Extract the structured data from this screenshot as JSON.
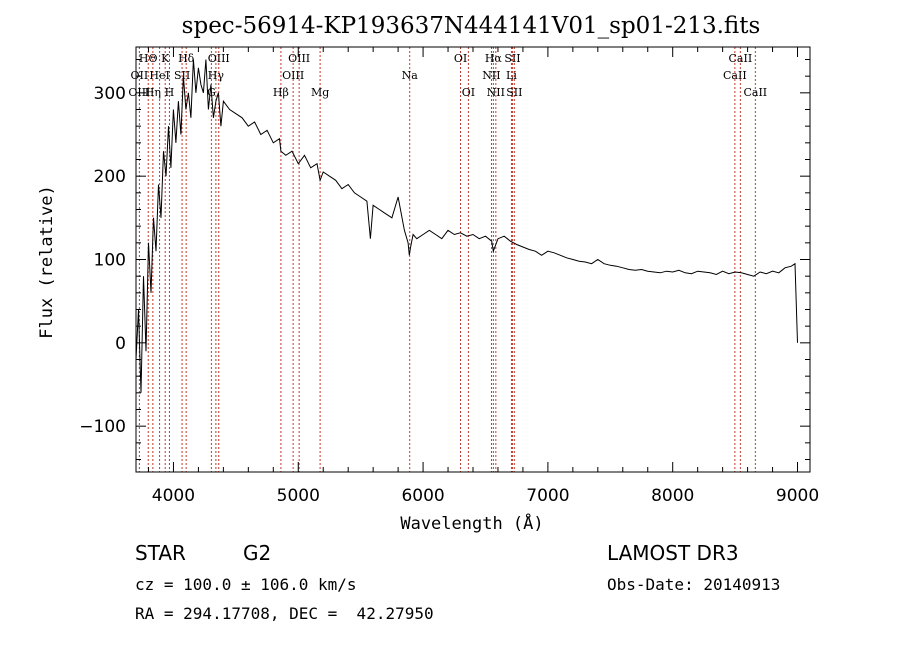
{
  "chart_data": {
    "type": "line",
    "title": "spec-56914-KP193637N444141V01_sp01-213.fits",
    "xlabel": "Wavelength (Å)",
    "ylabel": "Flux (relative)",
    "xlim": [
      3700,
      9100
    ],
    "ylim": [
      -155,
      355
    ],
    "xticks": [
      4000,
      5000,
      6000,
      7000,
      8000,
      9000
    ],
    "yticks": [
      -100,
      0,
      100,
      200,
      300
    ],
    "grid": false,
    "line_color": "#000000",
    "marker_color": "#c0392b",
    "series": [
      {
        "x": [
          3700,
          3720,
          3740,
          3760,
          3780,
          3800,
          3820,
          3840,
          3860,
          3880,
          3900,
          3920,
          3940,
          3960,
          3980,
          4000,
          4020,
          4040,
          4060,
          4080,
          4100,
          4120,
          4140,
          4160,
          4180,
          4200,
          4220,
          4240,
          4260,
          4280,
          4300,
          4320,
          4340,
          4360,
          4380,
          4400,
          4450,
          4500,
          4550,
          4600,
          4650,
          4700,
          4750,
          4800,
          4850,
          4861,
          4900,
          4950,
          5000,
          5050,
          5100,
          5150,
          5175,
          5200,
          5250,
          5300,
          5350,
          5400,
          5450,
          5500,
          5550,
          5578,
          5600,
          5650,
          5700,
          5750,
          5800,
          5850,
          5880,
          5890,
          5900,
          5920,
          5950,
          6000,
          6050,
          6100,
          6150,
          6200,
          6250,
          6300,
          6350,
          6400,
          6450,
          6500,
          6550,
          6563,
          6600,
          6650,
          6700,
          6750,
          6800,
          6850,
          6900,
          6950,
          7000,
          7050,
          7100,
          7150,
          7200,
          7250,
          7300,
          7350,
          7400,
          7450,
          7500,
          7550,
          7600,
          7650,
          7700,
          7750,
          7800,
          7850,
          7900,
          7950,
          8000,
          8050,
          8100,
          8150,
          8200,
          8250,
          8300,
          8350,
          8400,
          8450,
          8500,
          8550,
          8600,
          8650,
          8700,
          8750,
          8800,
          8850,
          8900,
          8950,
          8980,
          9000
        ],
        "y": [
          -20,
          40,
          -60,
          80,
          -10,
          120,
          60,
          150,
          110,
          190,
          150,
          230,
          200,
          260,
          210,
          280,
          240,
          290,
          250,
          320,
          280,
          300,
          270,
          340,
          300,
          330,
          310,
          300,
          340,
          280,
          310,
          270,
          290,
          300,
          260,
          290,
          280,
          275,
          270,
          260,
          265,
          250,
          255,
          240,
          245,
          230,
          225,
          230,
          215,
          225,
          210,
          215,
          195,
          205,
          200,
          195,
          185,
          190,
          180,
          175,
          170,
          125,
          165,
          160,
          155,
          150,
          175,
          135,
          120,
          105,
          115,
          130,
          125,
          130,
          135,
          130,
          125,
          135,
          130,
          132,
          128,
          130,
          125,
          128,
          122,
          110,
          125,
          128,
          122,
          118,
          115,
          112,
          110,
          105,
          110,
          108,
          105,
          102,
          100,
          98,
          97,
          95,
          100,
          95,
          93,
          92,
          90,
          88,
          87,
          88,
          86,
          85,
          84,
          86,
          85,
          87,
          84,
          83,
          86,
          85,
          84,
          82,
          86,
          83,
          85,
          84,
          82,
          80,
          85,
          83,
          86,
          84,
          90,
          92,
          95,
          0
        ]
      }
    ],
    "line_markers": [
      {
        "name": "HΘ",
        "wavelength": 3798,
        "row": 1
      },
      {
        "name": "OII",
        "wavelength": 3727,
        "row": 2
      },
      {
        "name": "OIII",
        "wavelength": 3727,
        "row": 3
      },
      {
        "name": "K",
        "wavelength": 3934,
        "row": 1
      },
      {
        "name": "HeI",
        "wavelength": 3889,
        "row": 2
      },
      {
        "name": "Hη",
        "wavelength": 3835,
        "row": 3
      },
      {
        "name": "SII",
        "wavelength": 4069,
        "row": 2
      },
      {
        "name": "H",
        "wavelength": 3968,
        "row": 3
      },
      {
        "name": "Hδ",
        "wavelength": 4102,
        "row": 1
      },
      {
        "name": "OIII",
        "wavelength": 4363,
        "row": 1
      },
      {
        "name": "Hγ",
        "wavelength": 4340,
        "row": 2
      },
      {
        "name": "G",
        "wavelength": 4304,
        "row": 3
      },
      {
        "name": "OIII",
        "wavelength": 5007,
        "row": 1
      },
      {
        "name": "OIII",
        "wavelength": 4959,
        "row": 2
      },
      {
        "name": "Hβ",
        "wavelength": 4861,
        "row": 3
      },
      {
        "name": "Mg",
        "wavelength": 5175,
        "row": 3
      },
      {
        "name": "Na",
        "wavelength": 5893,
        "row": 2
      },
      {
        "name": "OI",
        "wavelength": 6300,
        "row": 1
      },
      {
        "name": "OI",
        "wavelength": 6363,
        "row": 3
      },
      {
        "name": "Hα",
        "wavelength": 6563,
        "row": 1
      },
      {
        "name": "SII",
        "wavelength": 6716,
        "row": 1
      },
      {
        "name": "NII",
        "wavelength": 6548,
        "row": 2
      },
      {
        "name": "Li",
        "wavelength": 6708,
        "row": 2
      },
      {
        "name": "NII",
        "wavelength": 6583,
        "row": 3
      },
      {
        "name": "SII",
        "wavelength": 6731,
        "row": 3
      },
      {
        "name": "CaII",
        "wavelength": 8542,
        "row": 1
      },
      {
        "name": "CaII",
        "wavelength": 8498,
        "row": 2
      },
      {
        "name": "CaII",
        "wavelength": 8662,
        "row": 3
      }
    ]
  },
  "info": {
    "object_class": "STAR",
    "subclass": "G2",
    "survey": "LAMOST DR3",
    "redshift": "cz = 100.0 ± 106.0 km/s",
    "obs_date": "Obs-Date: 20140913",
    "coords": "RA = 294.17708, DEC =  42.27950"
  }
}
